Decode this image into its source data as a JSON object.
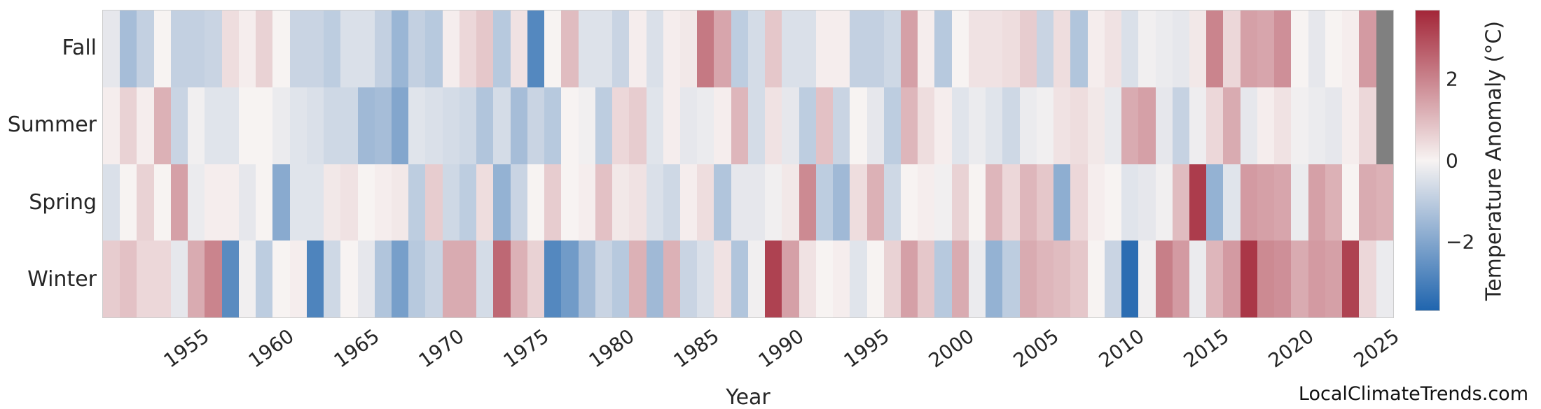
{
  "watermark": "LocalClimateTrends.com",
  "chart_data": {
    "type": "heatmap",
    "title": "",
    "xlabel": "Year",
    "colorbar_label": "Temperature Anomaly (°C)",
    "colorbar_ticks": [
      {
        "value": 2,
        "label": "2"
      },
      {
        "value": 0,
        "label": "0"
      },
      {
        "value": -2,
        "label": "−2"
      }
    ],
    "vmin": -3.7,
    "vmax": 3.7,
    "colors": {
      "negative_end": "#2065ae",
      "zero": "#f7f3f2",
      "positive_end": "#a32638",
      "missing": "#808080",
      "plot_border": "#cccccc"
    },
    "legend_position": "right",
    "grid": false,
    "year_range": [
      1950,
      2025
    ],
    "x_tick_labels": [
      "1955",
      "1960",
      "1965",
      "1970",
      "1975",
      "1980",
      "1985",
      "1990",
      "1995",
      "2000",
      "2005",
      "2010",
      "2015",
      "2020",
      "2025"
    ],
    "x_tick_years": [
      1955,
      1960,
      1965,
      1970,
      1975,
      1980,
      1985,
      1990,
      1995,
      2000,
      2005,
      2010,
      2015,
      2020,
      2025
    ],
    "categories_rows": [
      "Fall",
      "Summer",
      "Spring",
      "Winter"
    ],
    "series": [
      {
        "name": "Fall",
        "values": [
          -0.3,
          -1.4,
          -0.9,
          0,
          -0.9,
          -0.9,
          -0.8,
          0.4,
          0.1,
          0.6,
          0,
          -0.8,
          -0.8,
          -1,
          -0.5,
          -0.5,
          -0.9,
          -1.6,
          -0.9,
          -1.1,
          0.1,
          0.5,
          0.8,
          -1.1,
          0.3,
          -2.8,
          0,
          1,
          -0.45,
          -0.45,
          -0.8,
          0.1,
          -0.5,
          0.1,
          0.2,
          2.2,
          1.4,
          -1,
          -0.6,
          0.8,
          -0.5,
          -0.5,
          0.1,
          0.1,
          -0.9,
          -0.9,
          -0.7,
          1.5,
          0.1,
          -1.1,
          0,
          0.3,
          0.3,
          0.4,
          0.7,
          -0.8,
          0.4,
          -1.2,
          0.1,
          0.3,
          -0.5,
          -0.1,
          -0.2,
          -0.3,
          0.2,
          2,
          0.5,
          1.5,
          1.4,
          1.8,
          0,
          -0.3,
          0,
          0.1,
          1.6,
          null
        ]
      },
      {
        "name": "Summer",
        "values": [
          0.1,
          0.6,
          0.1,
          1.2,
          -0.8,
          -0.1,
          -0.4,
          -0.4,
          0,
          0,
          -0.2,
          -0.4,
          -0.5,
          -0.7,
          -0.7,
          -1.5,
          -1.4,
          -2,
          -0.4,
          -0.5,
          -0.6,
          -0.7,
          -1.2,
          -0.6,
          -1.4,
          -0.8,
          -1.1,
          0,
          -0.1,
          -1,
          0.5,
          0.7,
          -0.4,
          0.1,
          -0.3,
          -0.2,
          0.1,
          1.1,
          -0.6,
          0.3,
          -0.3,
          -1,
          0.9,
          -0.8,
          0,
          -0.3,
          -1,
          1.1,
          0.4,
          0.1,
          -0.4,
          -0.2,
          -0.4,
          -0.7,
          -0.2,
          -0.1,
          0.3,
          0.4,
          0.2,
          -0.25,
          1.3,
          1.5,
          -0.3,
          -0.85,
          -0.15,
          0.5,
          1.3,
          -0.3,
          0.1,
          0.3,
          -0.1,
          -0.2,
          -0.3,
          0.1,
          0.5,
          null
        ]
      },
      {
        "name": "Spring",
        "values": [
          -0.5,
          0,
          0.6,
          0,
          1.5,
          -0.2,
          0.1,
          0.1,
          -0.3,
          0,
          -1.9,
          -0.4,
          -0.4,
          0.2,
          0.3,
          0,
          0.1,
          0.2,
          -1,
          0.7,
          -0.7,
          -1,
          0.4,
          -1.7,
          -0.8,
          0,
          0.7,
          0,
          0.1,
          0.9,
          0.2,
          0.3,
          -0.5,
          -0.7,
          0.1,
          0.4,
          -1.2,
          -0.3,
          -0.3,
          -0.1,
          0.2,
          1.9,
          -1,
          -1.5,
          0.4,
          1.2,
          -0.7,
          0,
          0.1,
          -0.1,
          0.6,
          0,
          1.1,
          0.5,
          1.1,
          0.8,
          -1.8,
          0.5,
          0.1,
          0,
          -0.4,
          -0.3,
          -0.1,
          1,
          3.3,
          -1.7,
          -0.4,
          1.6,
          1.5,
          1.4,
          -0.2,
          1.5,
          1.2,
          0,
          1.3,
          1.2
        ]
      },
      {
        "name": "Winter",
        "values": [
          0.7,
          0.9,
          0.5,
          0.5,
          -0.3,
          1.3,
          2,
          -2.7,
          -0.1,
          -1,
          0,
          0.1,
          -2.9,
          -0.7,
          0,
          -0.3,
          -1.2,
          -2.2,
          -1.1,
          -0.8,
          1.3,
          1.3,
          -0.6,
          2.5,
          1.2,
          0.6,
          -2.8,
          -2.3,
          -1.4,
          -0.8,
          -1.1,
          1.2,
          -1.5,
          1.2,
          -0.8,
          -0.5,
          0.3,
          -1.2,
          -0.1,
          3.2,
          1.5,
          0.3,
          0,
          0.1,
          -0.4,
          0,
          0.6,
          1.5,
          0.8,
          -1.1,
          1.3,
          -0.2,
          -1.7,
          -1,
          1.3,
          1.1,
          1,
          0.8,
          0,
          -0.8,
          -3.5,
          -0.1,
          2.1,
          1.6,
          -0.2,
          1.1,
          1.6,
          3.4,
          1.9,
          1.8,
          1.3,
          1.6,
          1.5,
          3.2,
          0.5,
          -0.2
        ]
      }
    ]
  }
}
